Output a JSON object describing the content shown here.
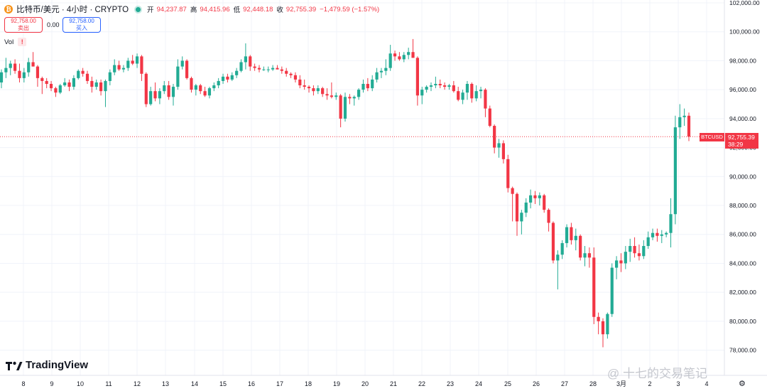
{
  "header": {
    "coin_symbol": "₿",
    "symbol_title": "比特币/美元 · 4小时 · CRYPTO",
    "open_label": "开",
    "open_value": "94,237.87",
    "high_label": "高",
    "high_value": "94,415.96",
    "low_label": "低",
    "low_value": "92,448.18",
    "close_label": "收",
    "close_value": "92,755.39",
    "change": "−1,479.59 (−1.57%)"
  },
  "trade": {
    "sell_price": "92,758.00",
    "sell_label": "卖出",
    "spread": "0.00",
    "buy_price": "92,758.00",
    "buy_label": "买入"
  },
  "volume_label": "Vol",
  "volume_warning": "!",
  "price_tag": {
    "symbol": "BTCUSD",
    "price": "92,755.39",
    "countdown": "38:29"
  },
  "logo_text": "TradingView",
  "watermark": "@ 十七的交易笔记",
  "settings_icon": "gear-icon",
  "colors": {
    "up": "#22ab94",
    "down": "#f23645",
    "grid": "#f0f3fa",
    "axis_text": "#131722"
  },
  "chart_data": {
    "type": "candlestick",
    "title": "比特币/美元 · 4小时 · CRYPTO",
    "ylim": [
      77000,
      102000
    ],
    "y_ticks": [
      78000,
      80000,
      82000,
      84000,
      86000,
      88000,
      90000,
      92000,
      94000,
      96000,
      98000,
      100000,
      102000
    ],
    "y_tick_labels": [
      "78,000.00",
      "80,000.00",
      "82,000.00",
      "84,000.00",
      "86,000.00",
      "88,000.00",
      "90,000.00",
      "92,000.00",
      "94,000.00",
      "96,000.00",
      "98,000.00",
      "100,000.00",
      "102,000.00"
    ],
    "x_ticks": [
      "8",
      "9",
      "10",
      "11",
      "12",
      "13",
      "14",
      "15",
      "16",
      "17",
      "18",
      "19",
      "20",
      "21",
      "22",
      "23",
      "24",
      "25",
      "26",
      "27",
      "28",
      "3月",
      "2",
      "3",
      "4"
    ],
    "last_price": 92755.39,
    "grid": true,
    "candles": [
      [
        96500,
        97400,
        96100,
        97200
      ],
      [
        97200,
        98200,
        96800,
        97500
      ],
      [
        97500,
        98000,
        97000,
        97800
      ],
      [
        97800,
        98100,
        97100,
        97300
      ],
      [
        97300,
        97800,
        96500,
        96800
      ],
      [
        96800,
        97500,
        96500,
        97200
      ],
      [
        97200,
        98200,
        96900,
        97900
      ],
      [
        97900,
        98600,
        97600,
        97600
      ],
      [
        97600,
        97700,
        96200,
        96800
      ],
      [
        96800,
        96900,
        95700,
        96600
      ],
      [
        96600,
        96800,
        96100,
        96400
      ],
      [
        96400,
        96600,
        95900,
        96100
      ],
      [
        96100,
        96200,
        95500,
        95800
      ],
      [
        95800,
        96400,
        95700,
        96300
      ],
      [
        96300,
        96800,
        96200,
        96500
      ],
      [
        96500,
        96700,
        95900,
        96200
      ],
      [
        96200,
        97000,
        96000,
        96800
      ],
      [
        96800,
        97400,
        96700,
        97300
      ],
      [
        97300,
        97500,
        96900,
        97100
      ],
      [
        97100,
        97300,
        96400,
        96600
      ],
      [
        96600,
        96900,
        95800,
        96200
      ],
      [
        96200,
        96700,
        96000,
        96500
      ],
      [
        96500,
        96700,
        95600,
        95900
      ],
      [
        95900,
        96700,
        94800,
        96600
      ],
      [
        96600,
        97400,
        96300,
        97200
      ],
      [
        97200,
        98100,
        97000,
        97700
      ],
      [
        97700,
        98000,
        97300,
        97400
      ],
      [
        97400,
        97700,
        97200,
        97500
      ],
      [
        97500,
        98200,
        97300,
        98000
      ],
      [
        98000,
        98400,
        97700,
        97800
      ],
      [
        97800,
        98500,
        97500,
        98300
      ],
      [
        98300,
        98400,
        96600,
        97100
      ],
      [
        97100,
        97200,
        94800,
        95000
      ],
      [
        95000,
        96200,
        94900,
        95900
      ],
      [
        95900,
        96500,
        95200,
        95400
      ],
      [
        95400,
        96100,
        95000,
        95900
      ],
      [
        95900,
        96600,
        95700,
        96300
      ],
      [
        96300,
        96600,
        95300,
        95500
      ],
      [
        95500,
        96400,
        94900,
        96200
      ],
      [
        96200,
        98100,
        96000,
        97600
      ],
      [
        97600,
        98300,
        97400,
        98000
      ],
      [
        98000,
        98100,
        96700,
        96800
      ],
      [
        96800,
        96900,
        95800,
        96000
      ],
      [
        96000,
        96400,
        95600,
        96300
      ],
      [
        96300,
        96400,
        95700,
        95900
      ],
      [
        95900,
        96200,
        95500,
        95600
      ],
      [
        95600,
        96200,
        95400,
        96100
      ],
      [
        96100,
        96500,
        95900,
        96300
      ],
      [
        96300,
        96800,
        96100,
        96600
      ],
      [
        96600,
        97100,
        96400,
        96900
      ],
      [
        96900,
        97100,
        96500,
        96700
      ],
      [
        96700,
        97200,
        96600,
        97000
      ],
      [
        97000,
        97500,
        96800,
        97300
      ],
      [
        97300,
        98100,
        97200,
        97900
      ],
      [
        97900,
        99200,
        97400,
        98300
      ],
      [
        98300,
        98400,
        97300,
        97600
      ],
      [
        97600,
        97800,
        97300,
        97500
      ],
      [
        97500,
        97700,
        97200,
        97400
      ],
      [
        97400,
        97600,
        97300,
        97400
      ],
      [
        97400,
        97600,
        97200,
        97400
      ],
      [
        97400,
        97700,
        97300,
        97500
      ],
      [
        97500,
        97700,
        97400,
        97400
      ],
      [
        97400,
        97600,
        97100,
        97300
      ],
      [
        97300,
        97500,
        96900,
        97100
      ],
      [
        97100,
        97200,
        96800,
        97000
      ],
      [
        97000,
        97200,
        96500,
        96700
      ],
      [
        96700,
        97000,
        96100,
        96300
      ],
      [
        96300,
        96700,
        96000,
        96200
      ],
      [
        96200,
        96300,
        95800,
        96100
      ],
      [
        96100,
        96300,
        95600,
        95900
      ],
      [
        95900,
        96300,
        95700,
        96100
      ],
      [
        96100,
        96200,
        95500,
        95700
      ],
      [
        95700,
        96100,
        95300,
        95600
      ],
      [
        95600,
        96500,
        95400,
        95500
      ],
      [
        95500,
        95800,
        95300,
        95600
      ],
      [
        95600,
        95700,
        93400,
        94000
      ],
      [
        94000,
        95800,
        93800,
        95500
      ],
      [
        95500,
        95700,
        95000,
        95400
      ],
      [
        95400,
        95600,
        94900,
        95500
      ],
      [
        95500,
        96100,
        95300,
        96000
      ],
      [
        96000,
        96700,
        95800,
        96400
      ],
      [
        96400,
        96800,
        95900,
        96100
      ],
      [
        96100,
        97000,
        95900,
        96700
      ],
      [
        96700,
        97500,
        96500,
        97200
      ],
      [
        97200,
        97500,
        96800,
        97300
      ],
      [
        97300,
        98100,
        97000,
        97500
      ],
      [
        97500,
        99100,
        97300,
        98500
      ],
      [
        98500,
        98700,
        98000,
        98300
      ],
      [
        98300,
        98600,
        98000,
        98100
      ],
      [
        98100,
        98600,
        97900,
        98400
      ],
      [
        98400,
        98900,
        98100,
        98600
      ],
      [
        98600,
        99500,
        98200,
        98200
      ],
      [
        98200,
        98300,
        94900,
        95600
      ],
      [
        95600,
        96200,
        95000,
        96000
      ],
      [
        96000,
        96300,
        95800,
        96200
      ],
      [
        96200,
        96500,
        95900,
        96300
      ],
      [
        96300,
        96900,
        96100,
        96400
      ],
      [
        96400,
        96700,
        96100,
        96300
      ],
      [
        96300,
        96500,
        96000,
        96200
      ],
      [
        96200,
        96400,
        96000,
        96300
      ],
      [
        96300,
        96600,
        95800,
        95900
      ],
      [
        95900,
        96200,
        95200,
        95300
      ],
      [
        95300,
        96000,
        95000,
        95800
      ],
      [
        95800,
        96600,
        95300,
        96400
      ],
      [
        96400,
        96500,
        95100,
        95400
      ],
      [
        95400,
        96300,
        95200,
        95900
      ],
      [
        95900,
        96200,
        95400,
        96000
      ],
      [
        96000,
        96100,
        94100,
        94700
      ],
      [
        94700,
        94900,
        93400,
        93500
      ],
      [
        93500,
        93600,
        91600,
        92000
      ],
      [
        92000,
        92600,
        91300,
        92300
      ],
      [
        92300,
        92500,
        90900,
        91200
      ],
      [
        91200,
        91500,
        88900,
        89200
      ],
      [
        89200,
        89300,
        86900,
        88800
      ],
      [
        88800,
        88900,
        85900,
        86900
      ],
      [
        86900,
        87700,
        86000,
        87500
      ],
      [
        87500,
        88500,
        87200,
        88200
      ],
      [
        88200,
        89100,
        87800,
        88700
      ],
      [
        88700,
        89000,
        88100,
        88500
      ],
      [
        88500,
        88900,
        88000,
        88700
      ],
      [
        88700,
        88800,
        87500,
        87700
      ],
      [
        87700,
        87800,
        86200,
        86800
      ],
      [
        86800,
        86900,
        84000,
        84200
      ],
      [
        84200,
        84900,
        82200,
        84600
      ],
      [
        84600,
        85600,
        84300,
        85400
      ],
      [
        85400,
        86700,
        85100,
        86500
      ],
      [
        86500,
        86800,
        85300,
        85600
      ],
      [
        85600,
        86400,
        84900,
        85900
      ],
      [
        85900,
        86000,
        84200,
        84400
      ],
      [
        84400,
        85200,
        83800,
        84700
      ],
      [
        84700,
        85100,
        83700,
        84400
      ],
      [
        84400,
        85100,
        79800,
        80300
      ],
      [
        80300,
        80600,
        79100,
        80000
      ],
      [
        80000,
        80200,
        78200,
        79100
      ],
      [
        79100,
        80600,
        78800,
        80500
      ],
      [
        80500,
        84000,
        80300,
        83700
      ],
      [
        83700,
        84500,
        82900,
        84200
      ],
      [
        84200,
        84700,
        83400,
        84000
      ],
      [
        84000,
        85200,
        83600,
        84800
      ],
      [
        84800,
        85700,
        84100,
        85200
      ],
      [
        85200,
        85800,
        84400,
        84700
      ],
      [
        84700,
        85300,
        84200,
        84500
      ],
      [
        84500,
        85600,
        84300,
        85200
      ],
      [
        85200,
        86200,
        85000,
        85800
      ],
      [
        85800,
        86400,
        85600,
        86100
      ],
      [
        86100,
        86400,
        85500,
        85900
      ],
      [
        85900,
        86300,
        85400,
        86000
      ],
      [
        86000,
        86200,
        85800,
        86100
      ],
      [
        86100,
        88500,
        85100,
        87400
      ],
      [
        87400,
        94200,
        86700,
        93400
      ],
      [
        93400,
        95000,
        92600,
        94100
      ],
      [
        94100,
        94700,
        93500,
        94200
      ],
      [
        94200,
        94416,
        92448,
        92755
      ]
    ]
  }
}
